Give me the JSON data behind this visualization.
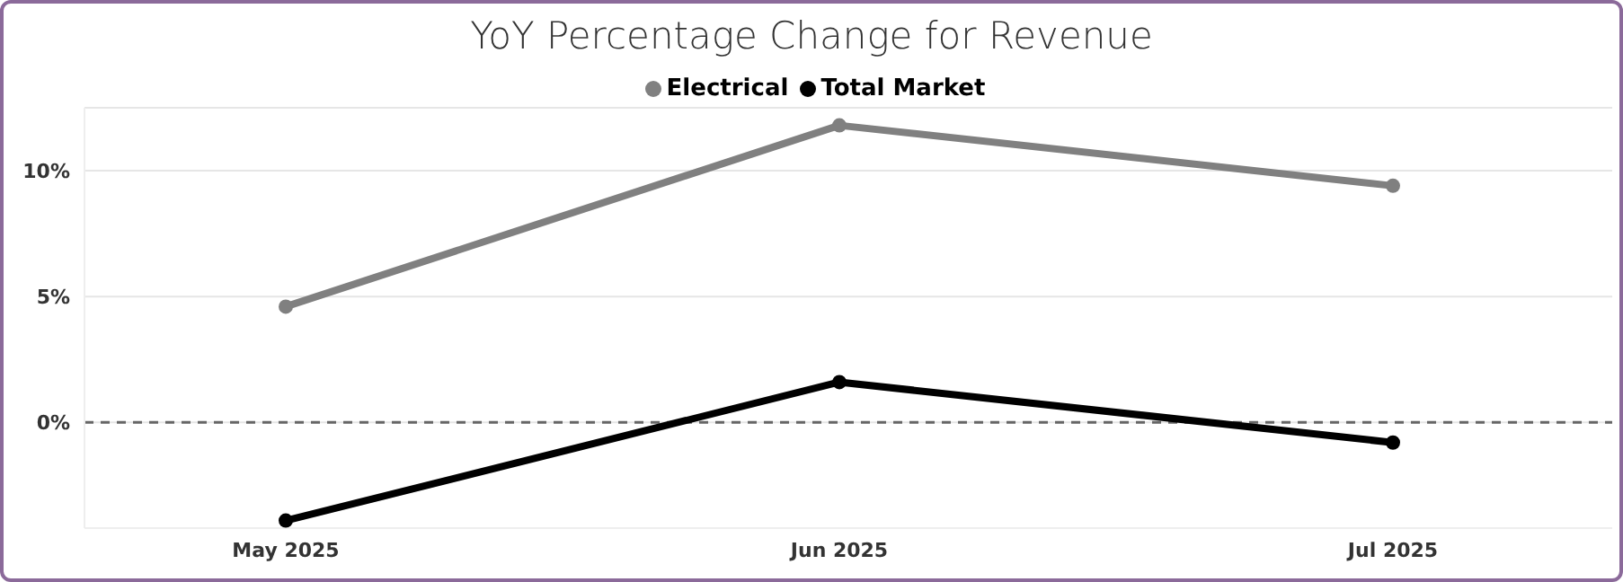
{
  "chart_data": {
    "type": "line",
    "title": "YoY Percentage Change for Revenue",
    "categories": [
      "May 2025",
      "Jun 2025",
      "Jul 2025"
    ],
    "series": [
      {
        "name": "Electrical",
        "color": "#808080",
        "values": [
          4.6,
          11.8,
          9.4
        ]
      },
      {
        "name": "Total Market",
        "color": "#000000",
        "values": [
          -3.9,
          1.6,
          -0.8
        ]
      }
    ],
    "ylim": [
      -4.2,
      12.5
    ],
    "yticks": [
      {
        "value": 0,
        "label": "0%"
      },
      {
        "value": 5,
        "label": "5%"
      },
      {
        "value": 10,
        "label": "10%"
      }
    ],
    "grid": "y",
    "legend": "top",
    "marker": "circle",
    "line_style": "solid",
    "ref_lines": [
      {
        "axis": "y",
        "value": 0,
        "color": "#666666",
        "line_style": "dashed"
      }
    ]
  }
}
